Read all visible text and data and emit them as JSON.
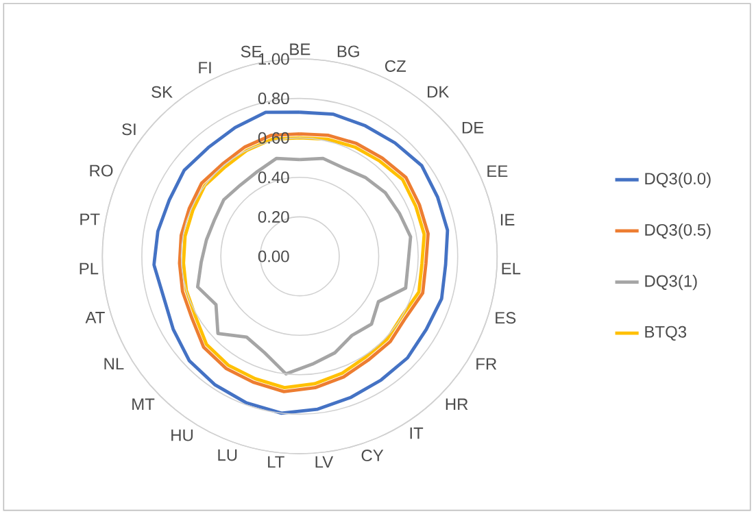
{
  "chart_data": {
    "type": "radar",
    "categories": [
      "BE",
      "BG",
      "CZ",
      "DK",
      "DE",
      "EE",
      "IE",
      "EL",
      "ES",
      "FR",
      "HR",
      "IT",
      "CY",
      "LV",
      "LT",
      "LU",
      "HU",
      "MT",
      "NL",
      "AT",
      "PL",
      "PT",
      "RO",
      "SI",
      "SK",
      "FI",
      "SE"
    ],
    "ylim": [
      0,
      1
    ],
    "yticks": [
      {
        "value": 0,
        "label": "0.00"
      },
      {
        "value": 0.2,
        "label": "0.20"
      },
      {
        "value": 0.4,
        "label": "0.40"
      },
      {
        "value": 0.6,
        "label": "0.60"
      },
      {
        "value": 0.8,
        "label": "0.80"
      },
      {
        "value": 1,
        "label": "1.00"
      }
    ],
    "grid": "y",
    "legend": "right",
    "marker": "none",
    "line_style": "solid",
    "series": [
      {
        "name": "DQ3(0.0)",
        "color": "#4472c4",
        "values": [
          0.73,
          0.74,
          0.74,
          0.75,
          0.77,
          0.76,
          0.76,
          0.74,
          0.75,
          0.74,
          0.75,
          0.75,
          0.76,
          0.78,
          0.8,
          0.79,
          0.78,
          0.77,
          0.74,
          0.72,
          0.74,
          0.73,
          0.72,
          0.73,
          0.72,
          0.73,
          0.75
        ]
      },
      {
        "name": "DQ3(0.5)",
        "color": "#ed7d31",
        "values": [
          0.62,
          0.63,
          0.64,
          0.65,
          0.67,
          0.66,
          0.66,
          0.64,
          0.65,
          0.62,
          0.63,
          0.63,
          0.65,
          0.67,
          0.69,
          0.68,
          0.68,
          0.67,
          0.63,
          0.62,
          0.61,
          0.61,
          0.61,
          0.62,
          0.61,
          0.62,
          0.63
        ]
      },
      {
        "name": "DQ3(1)",
        "color": "#a5a5a5",
        "values": [
          0.49,
          0.51,
          0.5,
          0.52,
          0.54,
          0.55,
          0.57,
          0.55,
          0.56,
          0.46,
          0.5,
          0.48,
          0.52,
          0.55,
          0.6,
          0.52,
          0.49,
          0.57,
          0.49,
          0.54,
          0.5,
          0.48,
          0.47,
          0.48,
          0.47,
          0.48,
          0.51
        ]
      },
      {
        "name": "BTQ3",
        "color": "#ffc000",
        "values": [
          0.6,
          0.61,
          0.62,
          0.63,
          0.65,
          0.64,
          0.64,
          0.62,
          0.63,
          0.6,
          0.61,
          0.61,
          0.63,
          0.65,
          0.67,
          0.66,
          0.66,
          0.65,
          0.61,
          0.6,
          0.59,
          0.59,
          0.59,
          0.6,
          0.59,
          0.6,
          0.61
        ]
      }
    ]
  }
}
